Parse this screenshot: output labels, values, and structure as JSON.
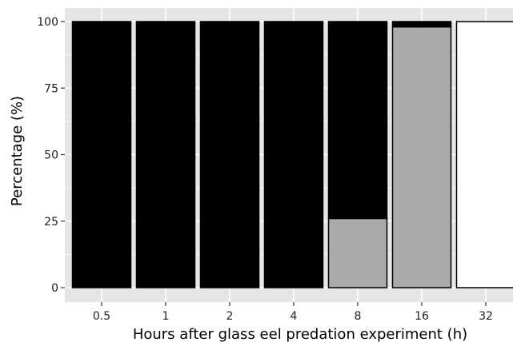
{
  "chart_data": {
    "type": "bar",
    "stacked": true,
    "title": "",
    "xlabel": "Hours after glass eel predation experiment (h)",
    "ylabel": "Percentage (%)",
    "ylim": [
      0,
      100
    ],
    "yticks": [
      0,
      25,
      50,
      75,
      100
    ],
    "grid": true,
    "legend": "none",
    "background_color": "#e5e5e5",
    "grid_color": "#ffffff",
    "categories": [
      "0.5",
      "1",
      "2",
      "4",
      "8",
      "16",
      "32"
    ],
    "series": [
      {
        "color": "#ffffff",
        "values": [
          0,
          0,
          0,
          0,
          0,
          0,
          100
        ]
      },
      {
        "color": "#aaaaaa",
        "values": [
          0,
          0,
          0,
          0,
          26,
          98,
          0
        ]
      },
      {
        "color": "#000000",
        "values": [
          100,
          100,
          100,
          100,
          74,
          2,
          0
        ]
      }
    ]
  }
}
